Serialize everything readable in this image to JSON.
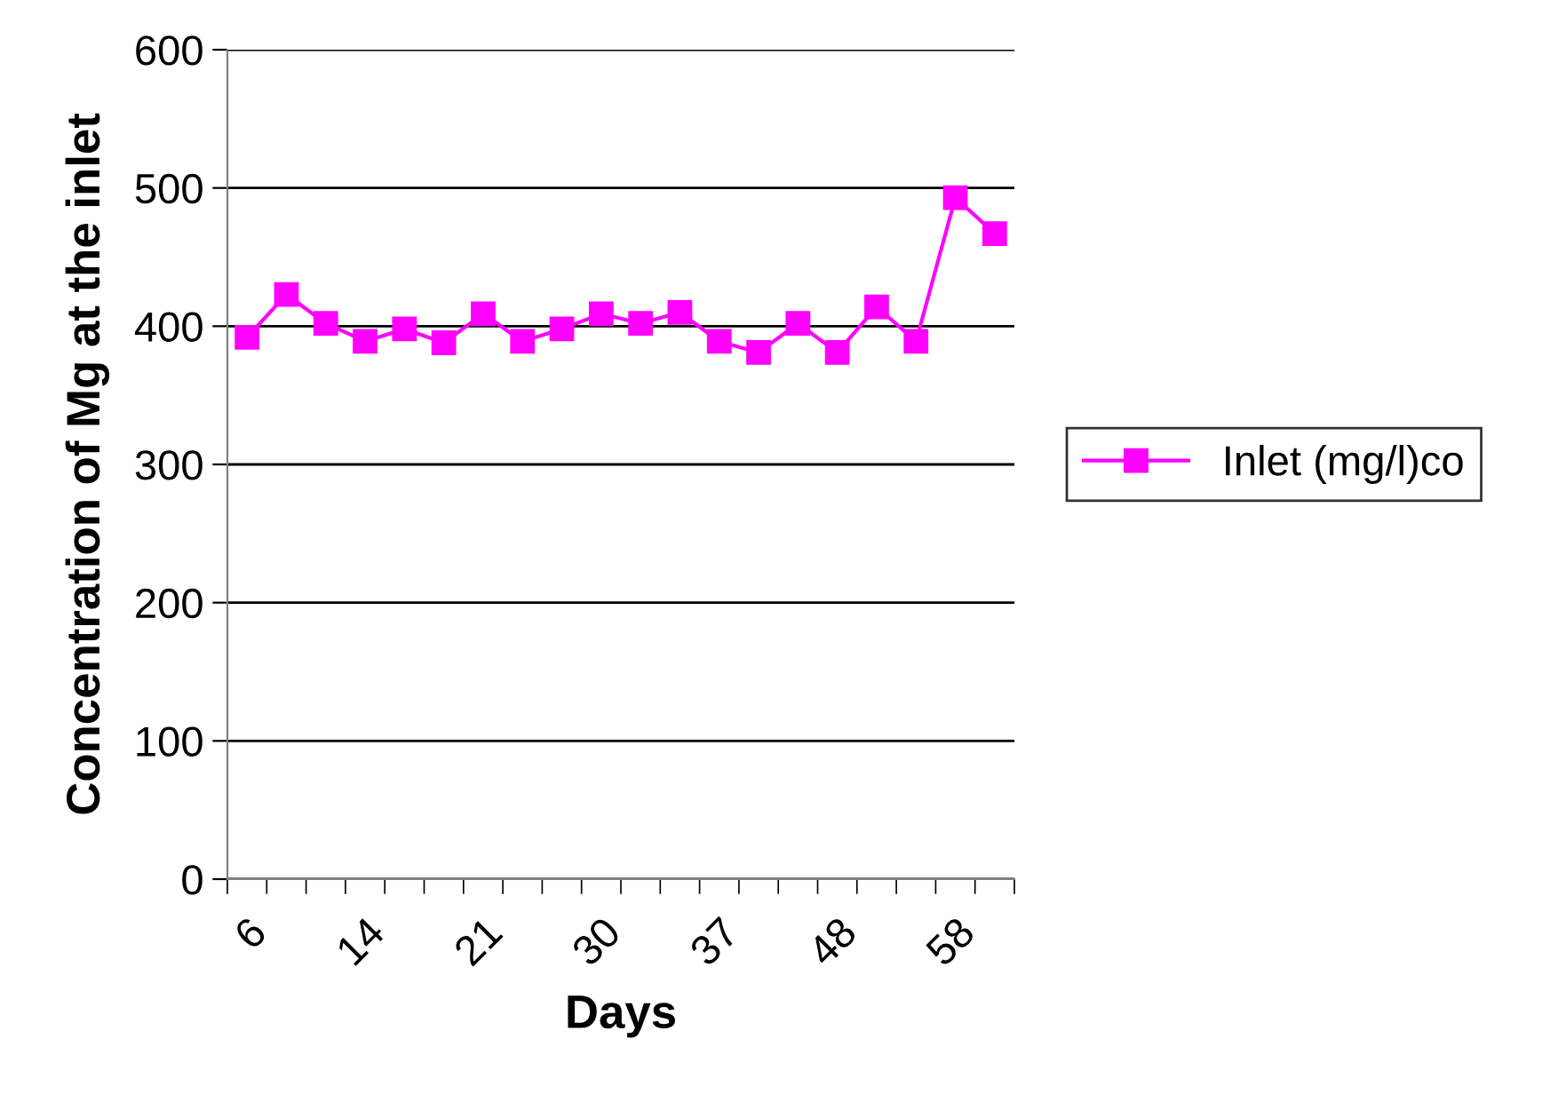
{
  "chart_data": {
    "type": "line",
    "xlabel": "Days",
    "ylabel": "Concentration of Mg at the inlet",
    "categories": [
      "6",
      null,
      null,
      "14",
      null,
      null,
      "21",
      null,
      null,
      "30",
      null,
      null,
      "37",
      null,
      null,
      "48",
      null,
      null,
      "58",
      null
    ],
    "series": [
      {
        "name": "Inlet (mg/l)co",
        "color": "#ff00ff",
        "values": [
          392,
          423,
          402,
          389,
          398,
          388,
          409,
          389,
          398,
          409,
          402,
          410,
          389,
          381,
          402,
          381,
          414,
          389,
          493,
          467
        ]
      }
    ],
    "ylim": [
      0,
      600
    ],
    "yticks": [
      0,
      100,
      200,
      300,
      400,
      500,
      600
    ],
    "grid": "y",
    "legend": "right",
    "marker": "square",
    "line_style": "solid"
  }
}
